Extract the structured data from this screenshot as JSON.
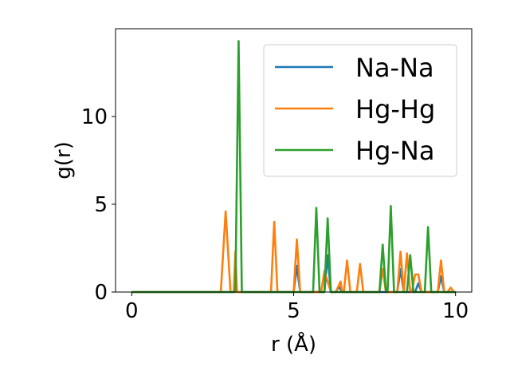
{
  "chart_data": {
    "type": "line",
    "xlabel": "r (Å)",
    "ylabel": "g(r)",
    "xlim": [
      -0.5,
      10.5
    ],
    "ylim": [
      0,
      15
    ],
    "xticks": [
      0,
      5,
      10
    ],
    "yticks": [
      0,
      5,
      10
    ],
    "grid": false,
    "legend_position": "top-right",
    "series": [
      {
        "name": "Na-Na",
        "color": "#1f77b4",
        "points": [
          [
            0,
            0
          ],
          [
            2.8,
            0
          ],
          [
            3.15,
            0
          ],
          [
            3.2,
            0.6
          ],
          [
            3.25,
            0
          ],
          [
            5.0,
            0
          ],
          [
            5.1,
            1.5
          ],
          [
            5.2,
            0
          ],
          [
            5.95,
            0
          ],
          [
            6.05,
            2.1
          ],
          [
            6.15,
            0
          ],
          [
            6.3,
            0
          ],
          [
            6.4,
            0.3
          ],
          [
            6.5,
            0
          ],
          [
            8.2,
            0
          ],
          [
            8.3,
            1.3
          ],
          [
            8.4,
            0
          ],
          [
            8.75,
            0
          ],
          [
            8.85,
            0.5
          ],
          [
            8.95,
            0
          ],
          [
            9.45,
            0
          ],
          [
            9.55,
            0.9
          ],
          [
            9.65,
            0
          ],
          [
            10,
            0
          ]
        ]
      },
      {
        "name": "Hg-Hg",
        "color": "#ff7f0e",
        "points": [
          [
            0,
            0
          ],
          [
            2.75,
            0
          ],
          [
            2.9,
            4.6
          ],
          [
            3.05,
            0
          ],
          [
            3.15,
            0
          ],
          [
            3.2,
            2.3
          ],
          [
            3.25,
            0
          ],
          [
            4.3,
            0
          ],
          [
            4.4,
            4.0
          ],
          [
            4.5,
            0
          ],
          [
            5.0,
            0
          ],
          [
            5.1,
            3.0
          ],
          [
            5.2,
            0
          ],
          [
            5.85,
            0
          ],
          [
            5.95,
            1.2
          ],
          [
            6.05,
            0.6
          ],
          [
            6.15,
            0
          ],
          [
            6.3,
            0
          ],
          [
            6.45,
            0.6
          ],
          [
            6.5,
            0
          ],
          [
            6.55,
            0
          ],
          [
            6.65,
            1.8
          ],
          [
            6.75,
            0
          ],
          [
            6.95,
            0
          ],
          [
            7.05,
            1.6
          ],
          [
            7.15,
            0
          ],
          [
            7.65,
            0
          ],
          [
            7.75,
            1.3
          ],
          [
            7.85,
            0
          ],
          [
            8.2,
            0
          ],
          [
            8.3,
            2.3
          ],
          [
            8.4,
            0
          ],
          [
            8.4,
            0
          ],
          [
            8.5,
            2.2
          ],
          [
            8.6,
            0
          ],
          [
            8.65,
            0
          ],
          [
            8.75,
            1.0
          ],
          [
            8.85,
            1.0
          ],
          [
            8.95,
            0
          ],
          [
            9.45,
            0
          ],
          [
            9.55,
            1.8
          ],
          [
            9.65,
            0
          ],
          [
            9.75,
            0
          ],
          [
            9.85,
            0.25
          ],
          [
            9.95,
            0
          ],
          [
            10,
            0
          ]
        ]
      },
      {
        "name": "Hg-Na",
        "color": "#2ca02c",
        "points": [
          [
            0,
            0
          ],
          [
            3.2,
            0
          ],
          [
            3.3,
            14.3
          ],
          [
            3.4,
            0
          ],
          [
            5.6,
            0
          ],
          [
            5.7,
            4.8
          ],
          [
            5.8,
            0
          ],
          [
            5.95,
            0
          ],
          [
            6.05,
            4.2
          ],
          [
            6.15,
            0
          ],
          [
            7.65,
            0
          ],
          [
            7.75,
            2.7
          ],
          [
            7.85,
            0
          ],
          [
            7.9,
            0
          ],
          [
            8.0,
            4.9
          ],
          [
            8.1,
            0
          ],
          [
            8.5,
            0
          ],
          [
            8.6,
            2.1
          ],
          [
            8.7,
            0
          ],
          [
            9.05,
            0
          ],
          [
            9.15,
            3.7
          ],
          [
            9.25,
            0
          ],
          [
            10,
            0
          ]
        ]
      }
    ]
  }
}
